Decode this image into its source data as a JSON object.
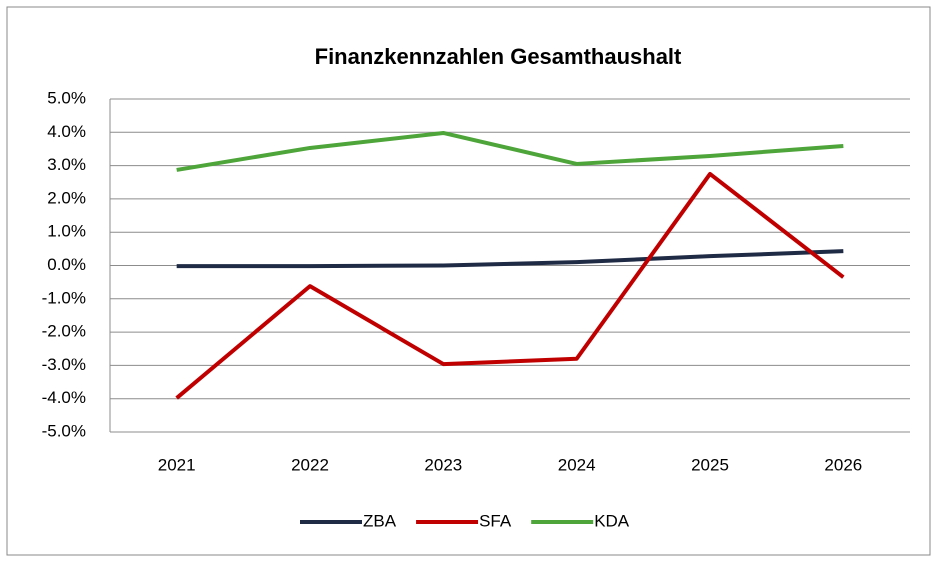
{
  "chart_data": {
    "type": "line",
    "title": "Finanzkennzahlen Gesamthaushalt",
    "categories": [
      "2021",
      "2022",
      "2023",
      "2024",
      "2025",
      "2026"
    ],
    "series": [
      {
        "name": "ZBA",
        "color": "#1f2a44",
        "values": [
          -0.02,
          -0.02,
          0.0,
          0.1,
          0.28,
          0.43
        ]
      },
      {
        "name": "SFA",
        "color": "#c00000",
        "values": [
          -3.98,
          -0.62,
          -2.96,
          -2.8,
          2.75,
          -0.35
        ]
      },
      {
        "name": "KDA",
        "color": "#4ea53a",
        "values": [
          2.87,
          3.53,
          3.98,
          3.05,
          3.29,
          3.59
        ]
      }
    ],
    "ylim": [
      -5,
      5
    ],
    "yticks": [
      {
        "value": 5,
        "label": "5.0%"
      },
      {
        "value": 4,
        "label": "4.0%"
      },
      {
        "value": 3,
        "label": "3.0%"
      },
      {
        "value": 2,
        "label": "2.0%"
      },
      {
        "value": 1,
        "label": "1.0%"
      },
      {
        "value": 0,
        "label": "0.0%"
      },
      {
        "value": -1,
        "label": "-1.0%"
      },
      {
        "value": -2,
        "label": "-2.0%"
      },
      {
        "value": -3,
        "label": "-3.0%"
      },
      {
        "value": -4,
        "label": "-4.0%"
      },
      {
        "value": -5,
        "label": "-5.0%"
      }
    ],
    "grid": true,
    "legend": "bottom"
  }
}
